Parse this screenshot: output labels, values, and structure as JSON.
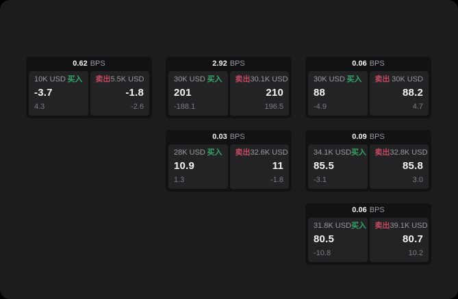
{
  "colors": {
    "outer_background": "#000000",
    "window_background": "#1c1c1e",
    "card_background": "#121214",
    "panel_background": "#232326",
    "buy_accent": "#35a566",
    "sell_accent": "#c24a61",
    "primary_text": "#f5f5f5",
    "secondary_text": "#9a9aa0",
    "muted_text": "#7e7e84"
  },
  "cards": [
    {
      "grid": {
        "row": 1,
        "col": 1
      },
      "bps_value": "0.62",
      "bps_unit": "BPS",
      "buy": {
        "size": "10K USD",
        "side_label": "买入",
        "price": "-3.7",
        "change": "4.3"
      },
      "sell": {
        "side_label": "卖出",
        "size": "5.5K USD",
        "price": "-1.8",
        "change": "-2.6"
      }
    },
    {
      "grid": {
        "row": 1,
        "col": 2
      },
      "bps_value": "2.92",
      "bps_unit": "BPS",
      "buy": {
        "size": "30K USD",
        "side_label": "买入",
        "price": "201",
        "change": "-188.1"
      },
      "sell": {
        "side_label": "卖出",
        "size": "30.1K USD",
        "price": "210",
        "change": "196.5"
      }
    },
    {
      "grid": {
        "row": 1,
        "col": 3
      },
      "bps_value": "0.06",
      "bps_unit": "BPS",
      "buy": {
        "size": "30K USD",
        "side_label": "买入",
        "price": "88",
        "change": "-4.9"
      },
      "sell": {
        "side_label": "卖出",
        "size": "30K USD",
        "price": "88.2",
        "change": "4.7"
      }
    },
    {
      "grid": {
        "row": 2,
        "col": 2
      },
      "bps_value": "0.03",
      "bps_unit": "BPS",
      "buy": {
        "size": "28K USD",
        "side_label": "买入",
        "price": "10.9",
        "change": "1.3"
      },
      "sell": {
        "side_label": "卖出",
        "size": "32.6K USD",
        "price": "11",
        "change": "-1.8"
      }
    },
    {
      "grid": {
        "row": 2,
        "col": 3
      },
      "bps_value": "0.09",
      "bps_unit": "BPS",
      "buy": {
        "size": "34.1K USD",
        "side_label": "买入",
        "price": "85.5",
        "change": "-3.1"
      },
      "sell": {
        "side_label": "卖出",
        "size": "32.8K USD",
        "price": "85.8",
        "change": "3.0"
      }
    },
    {
      "grid": {
        "row": 3,
        "col": 3
      },
      "bps_value": "0.06",
      "bps_unit": "BPS",
      "buy": {
        "size": "31.8K USD",
        "side_label": "买入",
        "price": "80.5",
        "change": "-10.8"
      },
      "sell": {
        "side_label": "卖出",
        "size": "39.1K USD",
        "price": "80.7",
        "change": "10.2"
      }
    }
  ]
}
